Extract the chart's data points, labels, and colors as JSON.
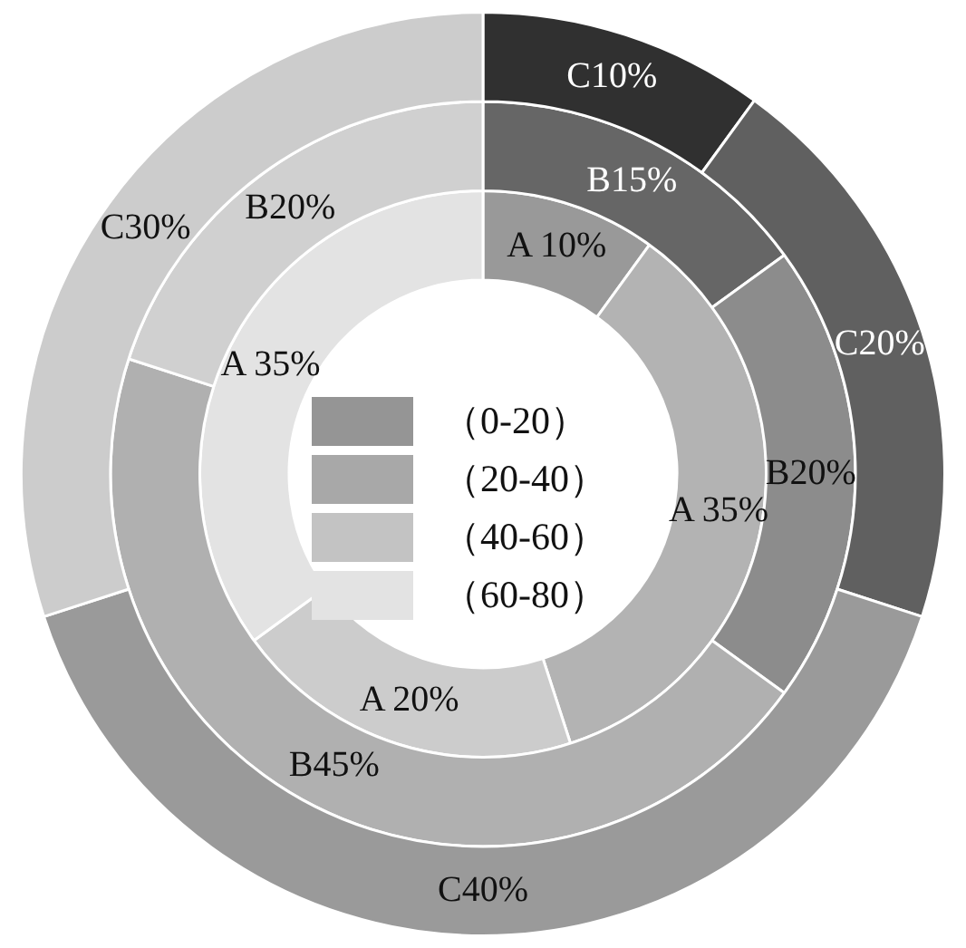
{
  "chart_data": {
    "type": "donut",
    "categories": [
      "（0-20）",
      "（20-40）",
      "（40-60）",
      "（60-80）"
    ],
    "colors": [
      "#959595",
      "#a8a8a8",
      "#c3c3c3",
      "#e3e3e3"
    ],
    "legend": "center",
    "series": [
      {
        "values": [
          10,
          35,
          20,
          35
        ],
        "colors": [
          "#999999",
          "#b3b3b3",
          "#cccccc",
          "#e3e3e3"
        ],
        "value_labels": [
          "A 10%",
          "A 35%",
          "A 20%",
          "A 35%"
        ]
      },
      {
        "values": [
          15,
          20,
          45,
          20
        ],
        "colors": [
          "#666666",
          "#8c8c8c",
          "#b0b0b0",
          "#d0d0d0"
        ],
        "value_labels": [
          "B15%",
          "B20%",
          "B45%",
          "B20%"
        ]
      },
      {
        "values": [
          10,
          20,
          40,
          30
        ],
        "colors": [
          "#303030",
          "#606060",
          "#9a9a9a",
          "#cccccc"
        ],
        "value_labels": [
          "C10%",
          "C20%",
          "C40%",
          "C30%"
        ]
      }
    ]
  }
}
